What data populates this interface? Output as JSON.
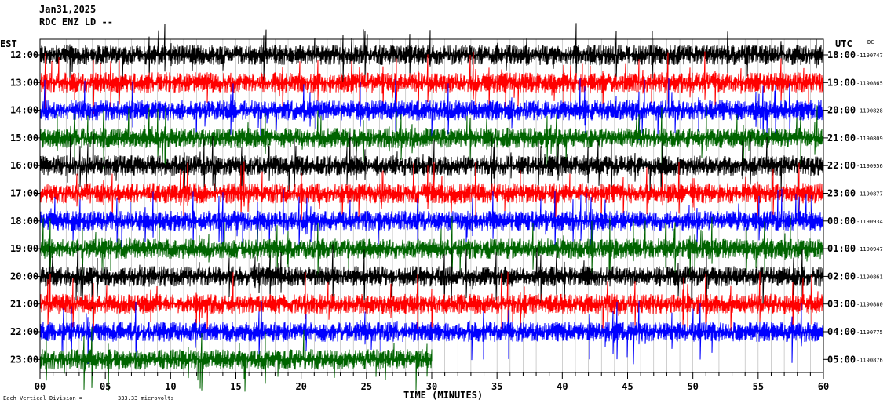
{
  "header": {
    "date": "Jan31,2025",
    "station": "RDC ENZ LD --",
    "left_tz": "EST",
    "right_tz": "UTC",
    "dc_label": "DC"
  },
  "footer": {
    "scale_note": "Each Vertical Division =",
    "scale_value": "333.33 microvolts",
    "xlabel": "TIME (MINUTES)"
  },
  "chart_data": {
    "type": "line",
    "xlabel": "TIME (MINUTES)",
    "xlim": [
      0,
      60
    ],
    "x_ticks": [
      "00",
      "05",
      "10",
      "15",
      "20",
      "25",
      "30",
      "35",
      "40",
      "45",
      "50",
      "55",
      "60"
    ],
    "rows": [
      {
        "left": "12:00",
        "right": "18:00",
        "dc": "-1190747",
        "color": "#000000",
        "end_min": 60
      },
      {
        "left": "13:00",
        "right": "19:00",
        "dc": "-1190865",
        "color": "#ff0000",
        "end_min": 60
      },
      {
        "left": "14:00",
        "right": "20:00",
        "dc": "-1190828",
        "color": "#0000ff",
        "end_min": 60
      },
      {
        "left": "15:00",
        "right": "21:00",
        "dc": "-1190809",
        "color": "#006400",
        "end_min": 60
      },
      {
        "left": "16:00",
        "right": "22:00",
        "dc": "-1190956",
        "color": "#000000",
        "end_min": 60
      },
      {
        "left": "17:00",
        "right": "23:00",
        "dc": "-1190877",
        "color": "#ff0000",
        "end_min": 60
      },
      {
        "left": "18:00",
        "right": "00:00",
        "dc": "-1190934",
        "color": "#0000ff",
        "end_min": 60
      },
      {
        "left": "19:00",
        "right": "01:00",
        "dc": "-1190947",
        "color": "#006400",
        "end_min": 60
      },
      {
        "left": "20:00",
        "right": "02:00",
        "dc": "-1190861",
        "color": "#000000",
        "end_min": 60
      },
      {
        "left": "21:00",
        "right": "03:00",
        "dc": "-1190880",
        "color": "#ff0000",
        "end_min": 60
      },
      {
        "left": "22:00",
        "right": "04:00",
        "dc": "-1190775",
        "color": "#0000ff",
        "end_min": 60
      },
      {
        "left": "23:00",
        "right": "05:00",
        "dc": "-1190876",
        "color": "#006400",
        "end_min": 30
      }
    ]
  }
}
